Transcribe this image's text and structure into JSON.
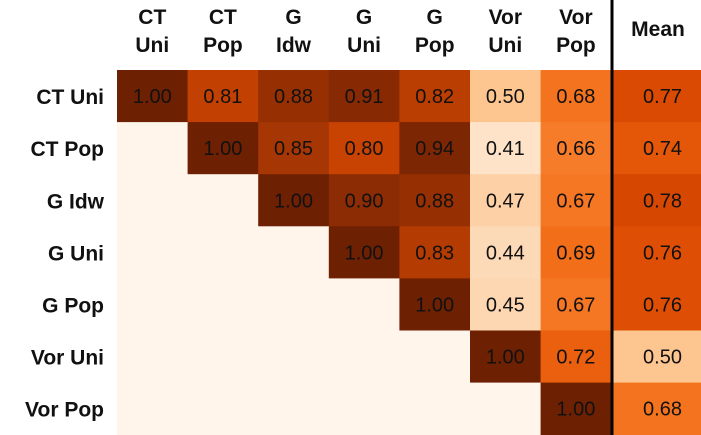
{
  "chart_data": {
    "type": "heatmap",
    "title": "",
    "rows": [
      "CT Uni",
      "CT Pop",
      "G Idw",
      "G Uni",
      "G Pop",
      "Vor Uni",
      "Vor Pop"
    ],
    "columns": [
      [
        "CT",
        "Uni"
      ],
      [
        "CT",
        "Pop"
      ],
      [
        "G",
        "Idw"
      ],
      [
        "G",
        "Uni"
      ],
      [
        "G",
        "Pop"
      ],
      [
        "Vor",
        "Uni"
      ],
      [
        "Vor",
        "Pop"
      ]
    ],
    "mean_label": "Mean",
    "values": [
      [
        1.0,
        0.81,
        0.88,
        0.91,
        0.82,
        0.5,
        0.68
      ],
      [
        null,
        1.0,
        0.85,
        0.8,
        0.94,
        0.41,
        0.66
      ],
      [
        null,
        null,
        1.0,
        0.9,
        0.88,
        0.47,
        0.67
      ],
      [
        null,
        null,
        null,
        1.0,
        0.83,
        0.44,
        0.69
      ],
      [
        null,
        null,
        null,
        null,
        1.0,
        0.45,
        0.67
      ],
      [
        null,
        null,
        null,
        null,
        null,
        1.0,
        0.72
      ],
      [
        null,
        null,
        null,
        null,
        null,
        null,
        1.0
      ]
    ],
    "mean": [
      0.77,
      0.74,
      0.78,
      0.76,
      0.76,
      0.5,
      0.68
    ],
    "colormap": "Oranges",
    "color_range": [
      0.4,
      1.0
    ],
    "empty_cell_color": "#fff5eb",
    "value_format": "2-decimal"
  }
}
